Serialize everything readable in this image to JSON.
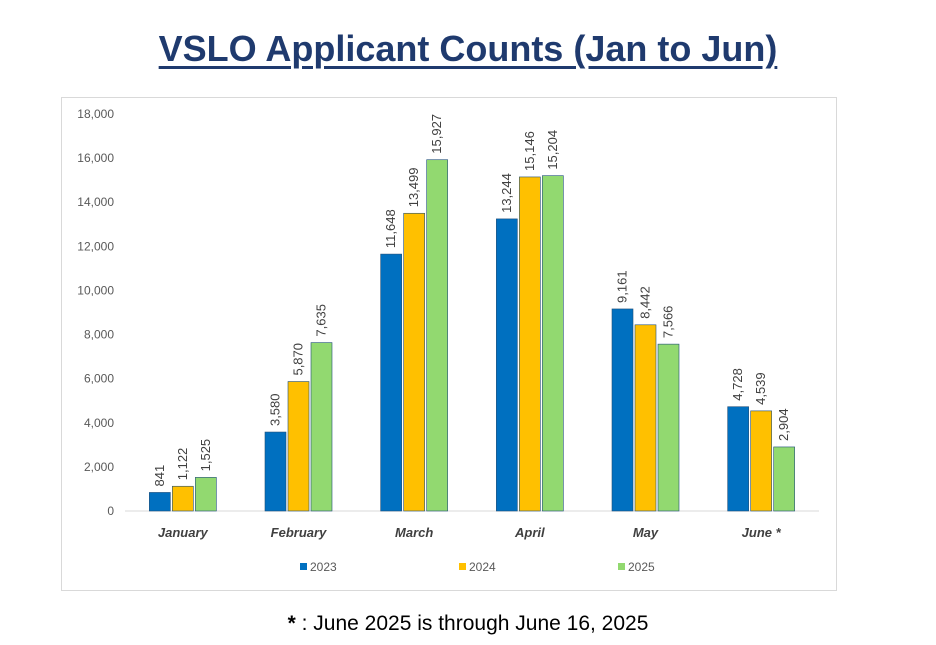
{
  "title": "VSLO Applicant Counts (Jan to Jun)",
  "footnote_star": "*",
  "footnote_text": " : June 2025 is through June 16, 2025",
  "chart_data": {
    "type": "bar",
    "categories": [
      "January",
      "February",
      "March",
      "April",
      "May",
      "June *"
    ],
    "series": [
      {
        "name": "2023",
        "color": "#0070c0",
        "values": [
          841,
          3580,
          11648,
          13244,
          9161,
          4728
        ],
        "labels": [
          "841",
          "3,580",
          "11,648",
          "13,244",
          "9,161",
          "4,728"
        ]
      },
      {
        "name": "2024",
        "color": "#ffc000",
        "values": [
          1122,
          5870,
          13499,
          15146,
          8442,
          4539
        ],
        "labels": [
          "1,122",
          "5,870",
          "13,499",
          "15,146",
          "8,442",
          "4,539"
        ]
      },
      {
        "name": "2025",
        "color": "#92d970",
        "values": [
          1525,
          7635,
          15927,
          15204,
          7566,
          2904
        ],
        "labels": [
          "1,525",
          "7,635",
          "15,927",
          "15,204",
          "7,566",
          "2,904"
        ]
      }
    ],
    "ylim": [
      0,
      18000
    ],
    "yticks": [
      0,
      2000,
      4000,
      6000,
      8000,
      10000,
      12000,
      14000,
      16000,
      18000
    ],
    "ytick_labels": [
      "0",
      "2,000",
      "4,000",
      "6,000",
      "8,000",
      "10,000",
      "12,000",
      "14,000",
      "16,000",
      "18,000"
    ],
    "grid": false,
    "legend_position": "bottom"
  }
}
